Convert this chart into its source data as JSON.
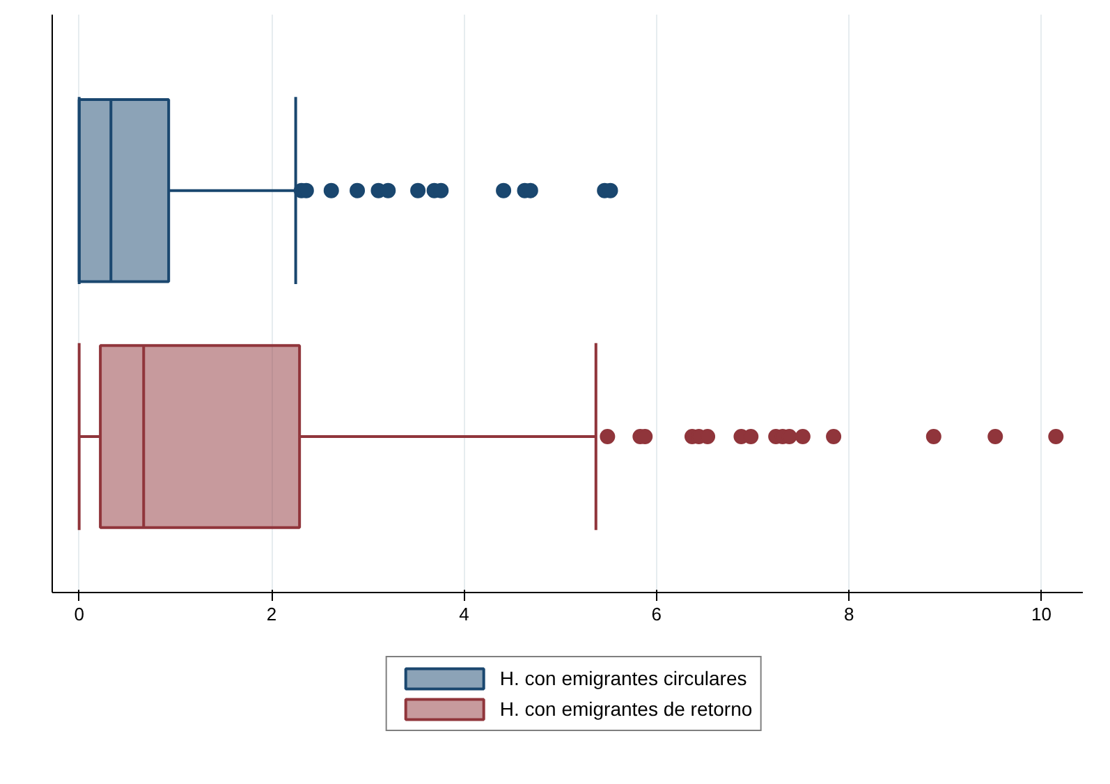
{
  "chart_data": {
    "type": "box",
    "orientation": "horizontal",
    "categories": [
      null,
      null
    ],
    "series": [
      {
        "name": "H. con emigrantes circulares",
        "color": "#1a476f",
        "boxes": [
          {
            "low": 0,
            "q1": 0,
            "median": 0.33,
            "q3": 0.93,
            "high": 2.25,
            "outliers": [
              2.31,
              2.36,
              2.62,
              2.89,
              3.11,
              3.21,
              3.52,
              3.69,
              3.76,
              4.41,
              4.63,
              4.69,
              5.46,
              5.52
            ]
          },
          null
        ]
      },
      {
        "name": "H. con emigrantes de retorno",
        "color": "#90353b",
        "boxes": [
          null,
          {
            "low": 0,
            "q1": 0.22,
            "median": 0.67,
            "q3": 2.29,
            "high": 5.37,
            "outliers": [
              5.49,
              5.83,
              5.88,
              6.37,
              6.44,
              6.53,
              6.88,
              6.98,
              7.24,
              7.31,
              7.38,
              7.52,
              7.84,
              8.88,
              9.52,
              10.15
            ]
          }
        ]
      }
    ],
    "xlim": [
      -0.28,
      10.43
    ],
    "xticks": [
      0,
      2,
      4,
      6,
      8,
      10
    ],
    "tick_labels": "x",
    "grid": "x",
    "legend": "bottom"
  }
}
